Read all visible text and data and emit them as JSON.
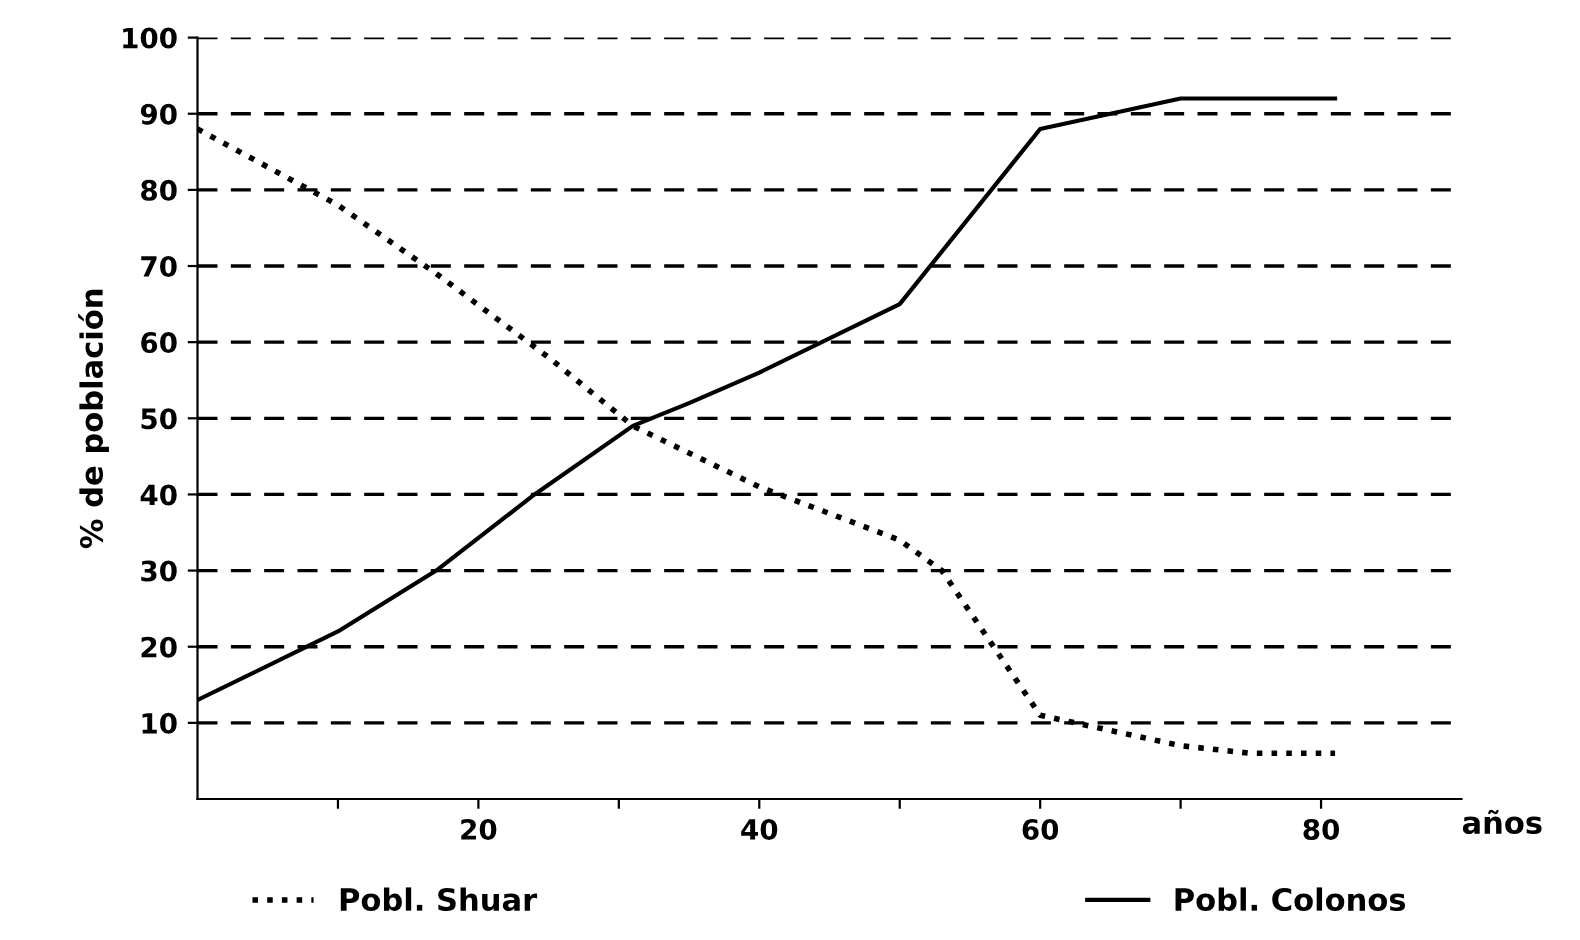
{
  "chart_data": {
    "type": "line",
    "ylabel": "% de población",
    "xlabel": "años",
    "xlim": [
      0,
      90
    ],
    "ylim": [
      0,
      100
    ],
    "xticks": [
      {
        "value": 10,
        "label": null
      },
      20,
      {
        "value": 30,
        "label": null
      },
      40,
      {
        "value": 50,
        "label": null
      },
      60,
      {
        "value": 70,
        "label": null
      },
      80
    ],
    "yticks": [
      10,
      20,
      30,
      40,
      50,
      60,
      70,
      80,
      90,
      100
    ],
    "grid": "y",
    "legend": "bottom",
    "marker": "none",
    "series": [
      {
        "name": "Pobl. Shuar",
        "color": "#000000",
        "line_style": "dotted",
        "x": [
          0,
          10,
          17,
          25,
          31,
          40,
          50,
          53,
          60,
          65,
          70,
          75,
          81
        ],
        "values": [
          88,
          78,
          69,
          58,
          49,
          41,
          34,
          30,
          11,
          9,
          7,
          6,
          6
        ]
      },
      {
        "name": "Pobl. Colonos",
        "color": "#000000",
        "line_style": "solid",
        "x": [
          0,
          10,
          17,
          24,
          31,
          35,
          40,
          50,
          60,
          70,
          81
        ],
        "values": [
          13,
          22,
          30,
          40,
          49,
          52,
          56,
          65,
          88,
          92,
          92
        ]
      }
    ]
  }
}
